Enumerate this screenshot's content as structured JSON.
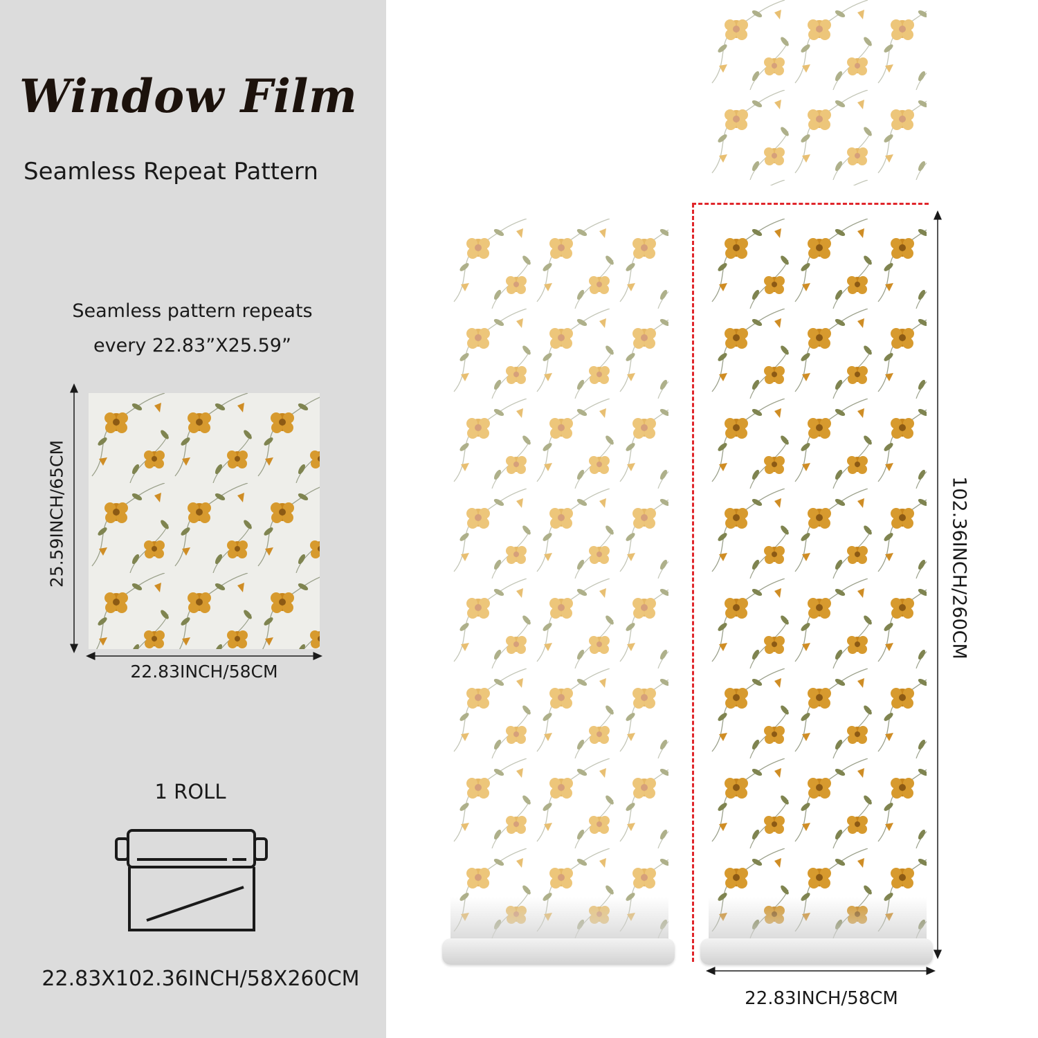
{
  "header": {
    "title": "Window Film",
    "subtitle": "Seamless Repeat Pattern"
  },
  "repeat_info": {
    "line1": "Seamless pattern repeats",
    "line2": "every 22.83”X25.59”"
  },
  "tile": {
    "height_label": "25.59INCH/65CM",
    "width_label": "22.83INCH/58CM"
  },
  "roll": {
    "count_label": "1 ROLL",
    "size_label": "22.83X102.36INCH/58X260CM",
    "icon": "film-roll-icon"
  },
  "rolls": {
    "length_label": "102.36INCH/260CM",
    "width_label": "22.83INCH/58CM"
  },
  "colors": {
    "left_panel_bg": "#dcdcdc",
    "flower_dark": "#c8861c",
    "flower_light": "#e6b967",
    "leaf": "#7f8450",
    "guide_dashed": "#e0262b"
  }
}
